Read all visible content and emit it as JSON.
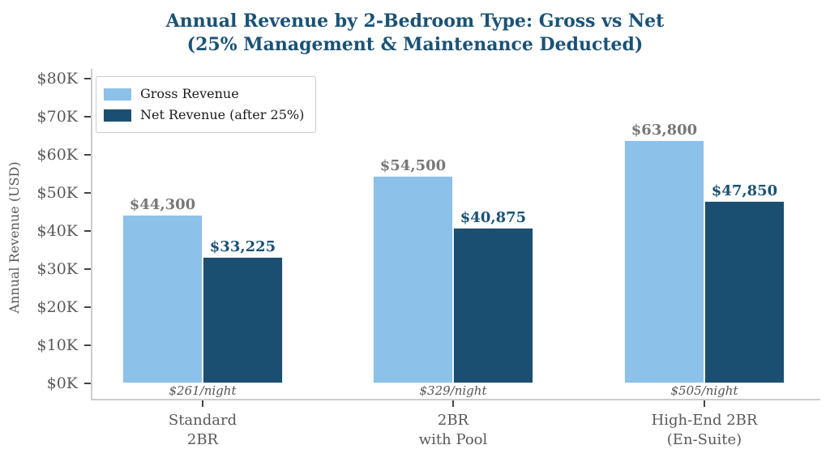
{
  "page": {
    "background": "#FFFFFF"
  },
  "title_lines": [
    "Annual Revenue by 2-Bedroom Type: Gross vs Net",
    "(25% Management & Maintenance Deducted)"
  ],
  "chart_data": {
    "type": "bar",
    "title": "Annual Revenue by 2-Bedroom Type: Gross vs Net (25% Management & Maintenance Deducted)",
    "xlabel": "",
    "ylabel": "Annual Revenue (USD)",
    "ylim": [
      0,
      80000
    ],
    "ytick_step": 10000,
    "ytick_labels": [
      "$0K",
      "$10K",
      "$20K",
      "$30K",
      "$40K",
      "$50K",
      "$60K",
      "$70K",
      "$80K"
    ],
    "grid": false,
    "legend_position": "upper left",
    "categories": [
      "Standard 2BR",
      "2BR with Pool",
      "High-End 2BR (En-Suite)"
    ],
    "category_lines": [
      [
        "Standard",
        "2BR"
      ],
      [
        "2BR",
        "with Pool"
      ],
      [
        "High-End 2BR",
        "(En-Suite)"
      ]
    ],
    "series": [
      {
        "name": "Gross Revenue",
        "values": [
          44300,
          54500,
          63800
        ],
        "value_labels": [
          "$44,300",
          "$54,500",
          "$63,800"
        ],
        "color": "#8CC1E9",
        "label_color": "#777777"
      },
      {
        "name": "Net Revenue (after 25%)",
        "values": [
          33225,
          40875,
          47850
        ],
        "value_labels": [
          "$33,225",
          "$40,875",
          "$47,850"
        ],
        "color": "#1B4F72",
        "label_color": "#1A5276"
      }
    ],
    "nightly_rate_annotations": [
      "$261/night",
      "$329/night",
      "$505/night"
    ]
  },
  "colors": {
    "title": "#1A5276",
    "axis_text": "#595959",
    "night_text": "#555555",
    "spine": "#CCCCCC",
    "tick_mark": "#444444",
    "legend_border": "#CCCCCC",
    "legend_text": "#1A1A1A"
  }
}
